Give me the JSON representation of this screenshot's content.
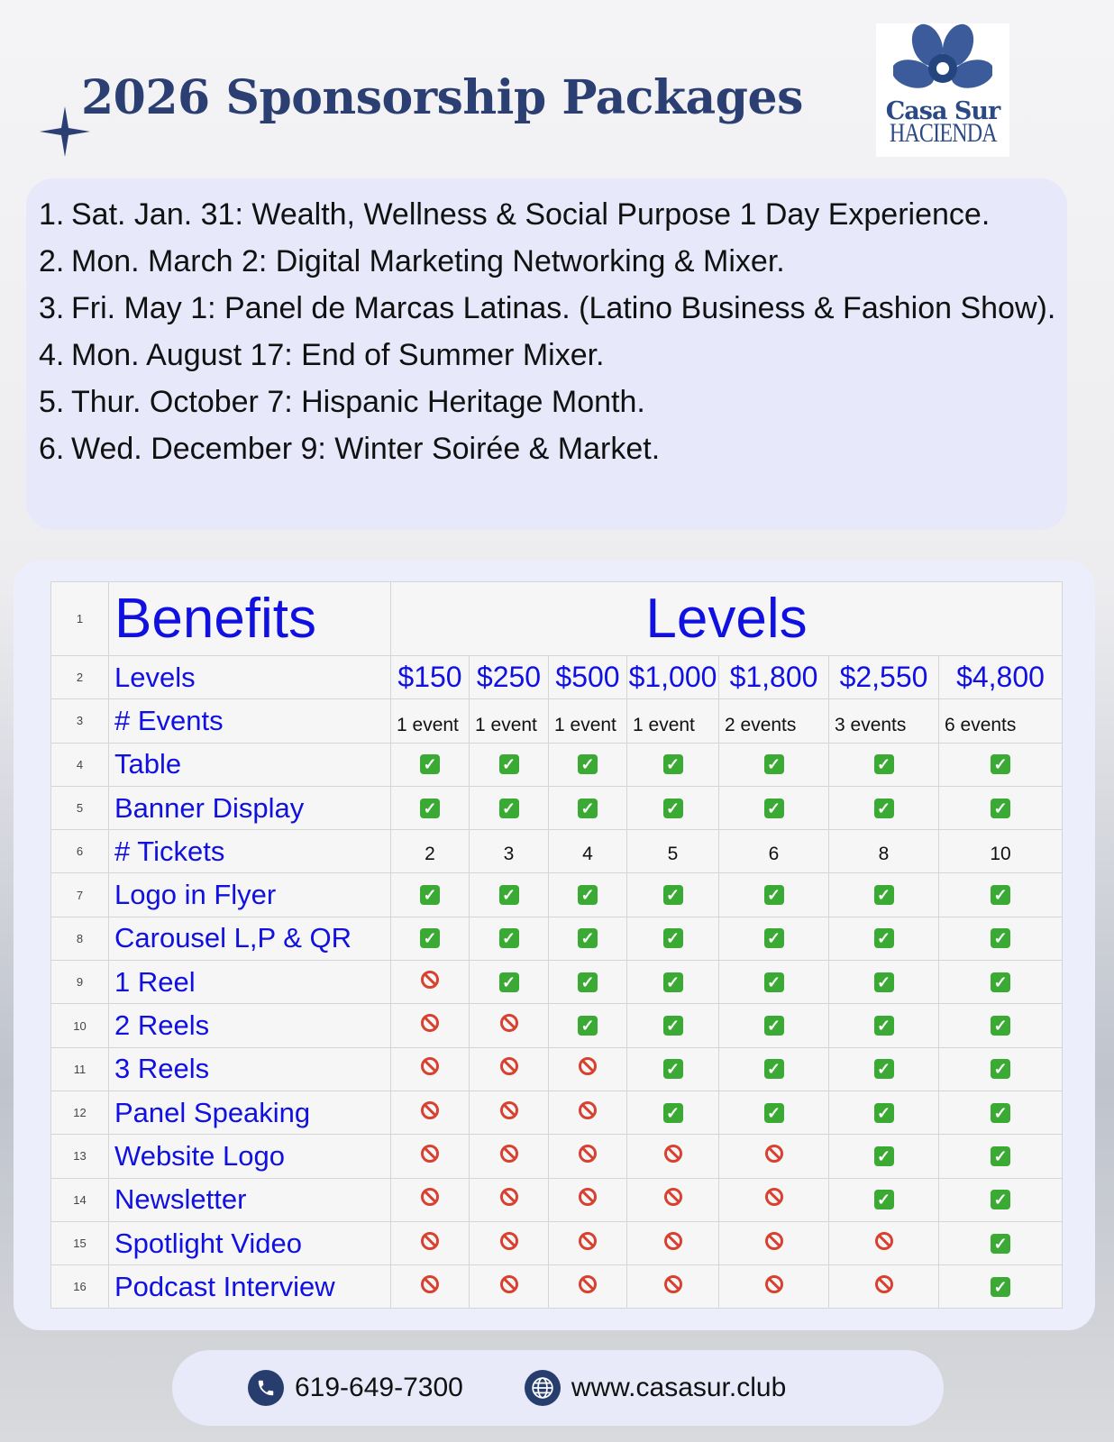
{
  "header": {
    "title": "2026 Sponsorship Packages",
    "logo_text": "Casa Sur",
    "logo_sub": "HACIENDA"
  },
  "events": [
    {
      "n": "1.",
      "text": "Sat. Jan. 31: Wealth, Wellness & Social Purpose 1 Day Experience."
    },
    {
      "n": "2.",
      "text": "Mon. March 2: Digital Marketing Networking & Mixer."
    },
    {
      "n": "3.",
      "text": "Fri. May 1: Panel de Marcas Latinas. (Latino Business & Fashion Show)."
    },
    {
      "n": "4.",
      "text": "Mon. August 17:  End of Summer Mixer."
    },
    {
      "n": "5.",
      "text": "Thur. October 7: Hispanic Heritage Month."
    },
    {
      "n": "6.",
      "text": "Wed. December 9:  Winter Soirée & Market."
    }
  ],
  "table": {
    "benefits_header": "Benefits",
    "levels_header": "Levels",
    "levels_label": "Levels",
    "prices": [
      "$150",
      "$250",
      "$500",
      "$1,000",
      "$1,800",
      "$2,550",
      "$4,800"
    ],
    "events_label": "# Events",
    "events_counts": [
      "1 event",
      "1 event",
      "1 event",
      "1 event",
      "2 events",
      "3 events",
      "6 events"
    ],
    "rows": [
      {
        "label": "Table",
        "v": [
          1,
          1,
          1,
          1,
          1,
          1,
          1
        ]
      },
      {
        "label": "Banner Display",
        "v": [
          1,
          1,
          1,
          1,
          1,
          1,
          1
        ]
      },
      {
        "label": "# Tickets",
        "v": [
          "2",
          "3",
          "4",
          "5",
          "6",
          "8",
          "10"
        ]
      },
      {
        "label": "Logo in Flyer",
        "v": [
          1,
          1,
          1,
          1,
          1,
          1,
          1
        ]
      },
      {
        "label": "Carousel L,P & QR",
        "v": [
          1,
          1,
          1,
          1,
          1,
          1,
          1
        ]
      },
      {
        "label": "1 Reel",
        "v": [
          0,
          1,
          1,
          1,
          1,
          1,
          1
        ]
      },
      {
        "label": "2 Reels",
        "v": [
          0,
          0,
          1,
          1,
          1,
          1,
          1
        ]
      },
      {
        "label": "3 Reels",
        "v": [
          0,
          0,
          0,
          1,
          1,
          1,
          1
        ]
      },
      {
        "label": "Panel Speaking",
        "v": [
          0,
          0,
          0,
          1,
          1,
          1,
          1
        ]
      },
      {
        "label": "Website Logo",
        "v": [
          0,
          0,
          0,
          0,
          0,
          1,
          1
        ]
      },
      {
        "label": "Newsletter",
        "v": [
          0,
          0,
          0,
          0,
          0,
          1,
          1
        ]
      },
      {
        "label": "Spotlight Video",
        "v": [
          0,
          0,
          0,
          0,
          0,
          0,
          1
        ]
      },
      {
        "label": "Podcast Interview",
        "v": [
          0,
          0,
          0,
          0,
          0,
          0,
          1
        ]
      }
    ]
  },
  "footer": {
    "phone": "619-649-7300",
    "website": "www.casasur.club"
  },
  "colors": {
    "title": "#2b3f73",
    "table_text": "#1010e0",
    "check": "#3aaa35",
    "no": "#d8412f",
    "panel": "#e7e9fb"
  }
}
